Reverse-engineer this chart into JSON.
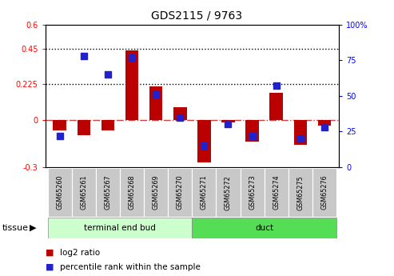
{
  "title": "GDS2115 / 9763",
  "samples": [
    "GSM65260",
    "GSM65261",
    "GSM65267",
    "GSM65268",
    "GSM65269",
    "GSM65270",
    "GSM65271",
    "GSM65272",
    "GSM65273",
    "GSM65274",
    "GSM65275",
    "GSM65276"
  ],
  "log2_ratio": [
    -0.07,
    -0.1,
    -0.07,
    0.44,
    0.21,
    0.08,
    -0.27,
    -0.02,
    -0.14,
    0.17,
    -0.16,
    -0.04
  ],
  "percentile_rank": [
    22,
    78,
    65,
    77,
    51,
    35,
    15,
    30,
    22,
    57,
    20,
    28
  ],
  "tissue_groups": [
    {
      "label": "terminal end bud",
      "start": 0,
      "end": 6,
      "color": "#CCFFCC"
    },
    {
      "label": "duct",
      "start": 6,
      "end": 12,
      "color": "#55DD55"
    }
  ],
  "ylim_left": [
    -0.3,
    0.6
  ],
  "ylim_right": [
    0,
    100
  ],
  "yticks_left": [
    -0.3,
    0.0,
    0.225,
    0.45,
    0.6
  ],
  "ytick_labels_left": [
    "-0.3",
    "0",
    "0.225",
    "0.45",
    "0.6"
  ],
  "yticks_right": [
    0,
    25,
    50,
    75,
    100
  ],
  "ytick_labels_right": [
    "0",
    "25",
    "50",
    "75",
    "100%"
  ],
  "hlines_dotted": [
    0.45,
    0.225
  ],
  "hline_zero": 0.0,
  "bar_color": "#BB0000",
  "dot_color": "#2222CC",
  "bar_width": 0.55,
  "dot_size": 30,
  "tissue_label": "tissue",
  "legend_items": [
    {
      "label": "log2 ratio",
      "color": "#BB0000"
    },
    {
      "label": "percentile rank within the sample",
      "color": "#2222CC"
    }
  ]
}
